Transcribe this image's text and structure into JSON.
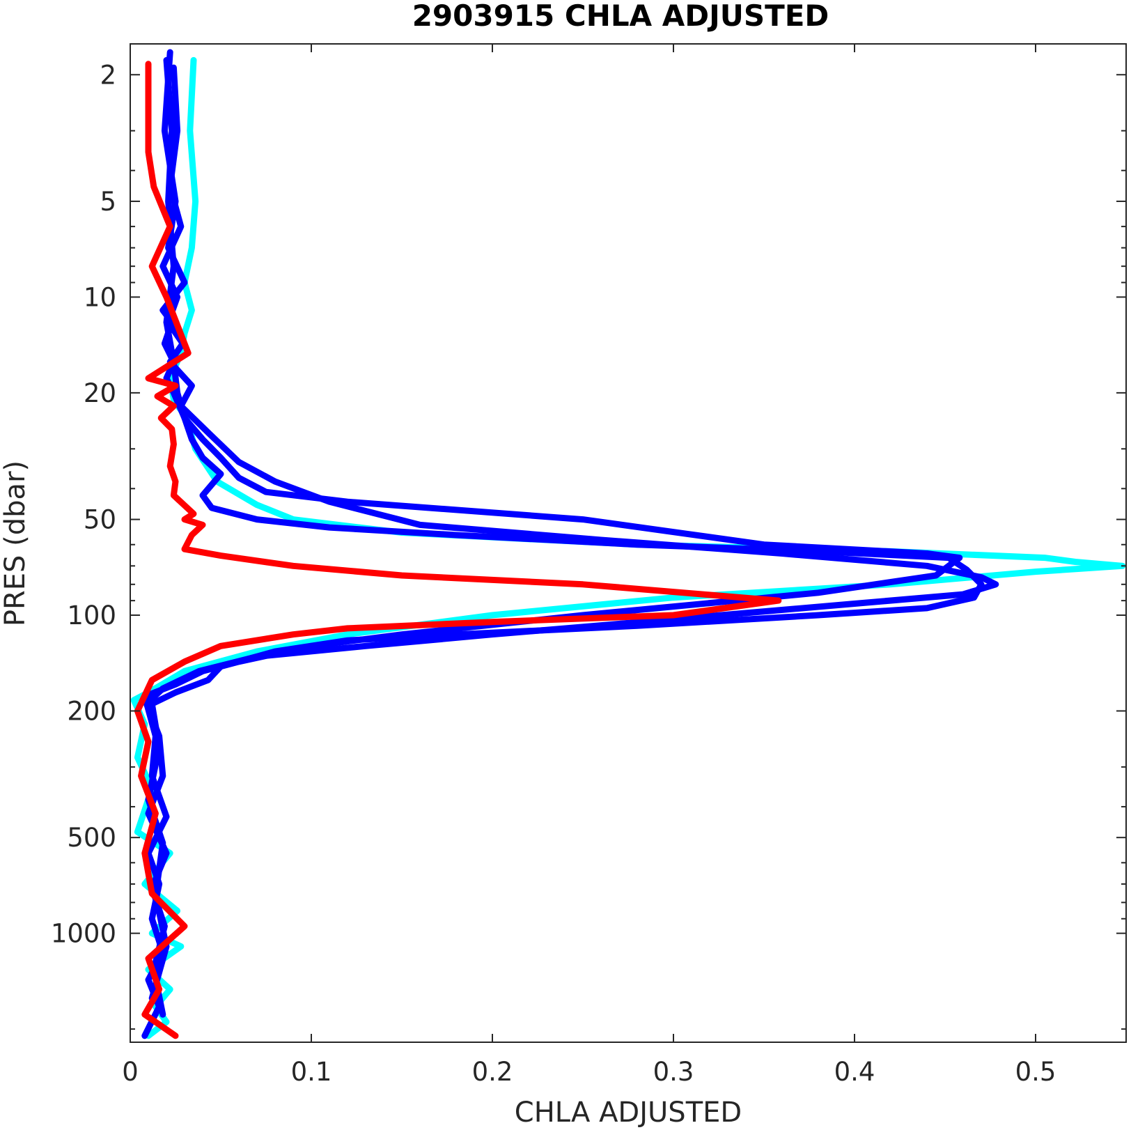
{
  "chart_data": {
    "type": "line",
    "title": "2903915  CHLA ADJUSTED",
    "xlabel": "CHLA ADJUSTED",
    "ylabel": "PRES (dbar)",
    "xlim": [
      0,
      0.55
    ],
    "ylim": [
      1.6,
      2200
    ],
    "y_scale": "log",
    "y_reversed": true,
    "xticks": [
      0,
      0.1,
      0.2,
      0.3,
      0.4,
      0.5
    ],
    "xtick_labels": [
      "0",
      "0.1",
      "0.2",
      "0.3",
      "0.4",
      "0.5"
    ],
    "yticks": [
      2,
      5,
      10,
      20,
      50,
      100,
      200,
      500,
      1000
    ],
    "ytick_labels": [
      "2",
      "5",
      "10",
      "20",
      "50",
      "100",
      "200",
      "500",
      "1000"
    ],
    "grid": false,
    "colors": {
      "cyan": "#00ffff",
      "blue": "#0000ff",
      "red": "#ff0000",
      "axis": "#262626"
    },
    "series": [
      {
        "color": "#00ffff",
        "x": [
          0.035,
          0.033,
          0.036,
          0.034,
          0.03,
          0.034,
          0.03,
          0.028,
          0.022,
          0.024,
          0.031,
          0.036,
          0.048,
          0.07,
          0.09,
          0.15,
          0.28,
          0.42,
          0.505,
          0.522,
          0.548,
          0.5,
          0.42,
          0.3,
          0.2,
          0.12,
          0.07,
          0.03,
          0.01,
          0.002,
          0.008,
          0.004,
          0.012,
          0.004,
          0.022,
          0.008,
          0.026,
          0.012,
          0.028,
          0.01,
          0.022,
          0.014,
          0.02,
          0.01
        ],
        "y": [
          1.8,
          3,
          5,
          7,
          9,
          11,
          13,
          15,
          18,
          21,
          24,
          30,
          38,
          45,
          50,
          55,
          60,
          63,
          66,
          68,
          70,
          73,
          80,
          88,
          100,
          115,
          130,
          150,
          175,
          185,
          220,
          280,
          350,
          480,
          560,
          700,
          850,
          1000,
          1100,
          1300,
          1500,
          1700,
          1900,
          2100
        ]
      },
      {
        "color": "#0000ff",
        "x": [
          0.022,
          0.019,
          0.025,
          0.021,
          0.03,
          0.018,
          0.023,
          0.019,
          0.024,
          0.02,
          0.024,
          0.03,
          0.04,
          0.05,
          0.06,
          0.075,
          0.12,
          0.25,
          0.35,
          0.44,
          0.458,
          0.445,
          0.38,
          0.25,
          0.15,
          0.1,
          0.06,
          0.04,
          0.025,
          0.008,
          0.014,
          0.012,
          0.02,
          0.01,
          0.016,
          0.012,
          0.018,
          0.01,
          0.016,
          0.008
        ],
        "y": [
          1.7,
          3,
          5,
          7,
          9,
          11,
          12,
          14,
          16,
          18,
          20,
          24,
          28,
          32,
          37,
          41,
          44,
          50,
          60,
          64,
          66,
          75,
          85,
          100,
          115,
          125,
          140,
          150,
          165,
          180,
          240,
          320,
          430,
          560,
          700,
          900,
          1150,
          1400,
          1700,
          2100
        ]
      },
      {
        "color": "#0000ff",
        "x": [
          0.024,
          0.026,
          0.022,
          0.028,
          0.018,
          0.026,
          0.021,
          0.029,
          0.022,
          0.034,
          0.028,
          0.044,
          0.06,
          0.08,
          0.11,
          0.16,
          0.26,
          0.36,
          0.44,
          0.47,
          0.478,
          0.46,
          0.4,
          0.3,
          0.2,
          0.13,
          0.07,
          0.038,
          0.018,
          0.009,
          0.016,
          0.018,
          0.01,
          0.02,
          0.012,
          0.019,
          0.013,
          0.018
        ],
        "y": [
          1.9,
          3,
          4.5,
          6,
          8,
          10,
          12,
          14,
          16,
          19,
          22,
          27,
          33,
          38,
          44,
          52,
          58,
          64,
          70,
          76,
          80,
          86,
          92,
          103,
          115,
          125,
          135,
          150,
          170,
          190,
          240,
          320,
          420,
          560,
          720,
          950,
          1300,
          1800
        ]
      },
      {
        "color": "#0000ff",
        "x": [
          0.02,
          0.023,
          0.021,
          0.024,
          0.02,
          0.024,
          0.026,
          0.03,
          0.034,
          0.04,
          0.05,
          0.04,
          0.045,
          0.07,
          0.11,
          0.18,
          0.28,
          0.38,
          0.452,
          0.462,
          0.47,
          0.466,
          0.44,
          0.38,
          0.28,
          0.18,
          0.12,
          0.08,
          0.05,
          0.043,
          0.025,
          0.012,
          0.016,
          0.01,
          0.018,
          0.014,
          0.02,
          0.012
        ],
        "y": [
          1.8,
          3,
          5,
          8,
          12,
          16,
          20,
          24,
          28,
          32,
          36,
          42,
          46,
          50,
          53,
          56,
          60,
          63,
          66,
          72,
          80,
          88,
          95,
          100,
          108,
          115,
          120,
          130,
          145,
          160,
          175,
          190,
          260,
          380,
          520,
          760,
          1100,
          1600
        ]
      },
      {
        "color": "#ff0000",
        "x": [
          0.01,
          0.01,
          0.013,
          0.022,
          0.012,
          0.02,
          0.032,
          0.01,
          0.025,
          0.015,
          0.024,
          0.017,
          0.023,
          0.024,
          0.022,
          0.025,
          0.024,
          0.035,
          0.03,
          0.04,
          0.034,
          0.03,
          0.05,
          0.09,
          0.15,
          0.25,
          0.358,
          0.3,
          0.2,
          0.12,
          0.09,
          0.05,
          0.03,
          0.012,
          0.004,
          0.01,
          0.006,
          0.014,
          0.008,
          0.012,
          0.03,
          0.01,
          0.016,
          0.008,
          0.025
        ],
        "y": [
          1.85,
          3.5,
          4.5,
          6,
          8,
          10,
          15,
          18,
          19,
          20.5,
          22,
          24,
          26,
          29,
          34,
          38,
          42,
          48,
          50,
          52,
          56,
          62,
          65,
          70,
          75,
          80,
          90,
          100,
          105,
          110,
          115,
          125,
          140,
          160,
          200,
          250,
          320,
          420,
          560,
          750,
          950,
          1200,
          1500,
          1800,
          2100
        ]
      }
    ]
  }
}
